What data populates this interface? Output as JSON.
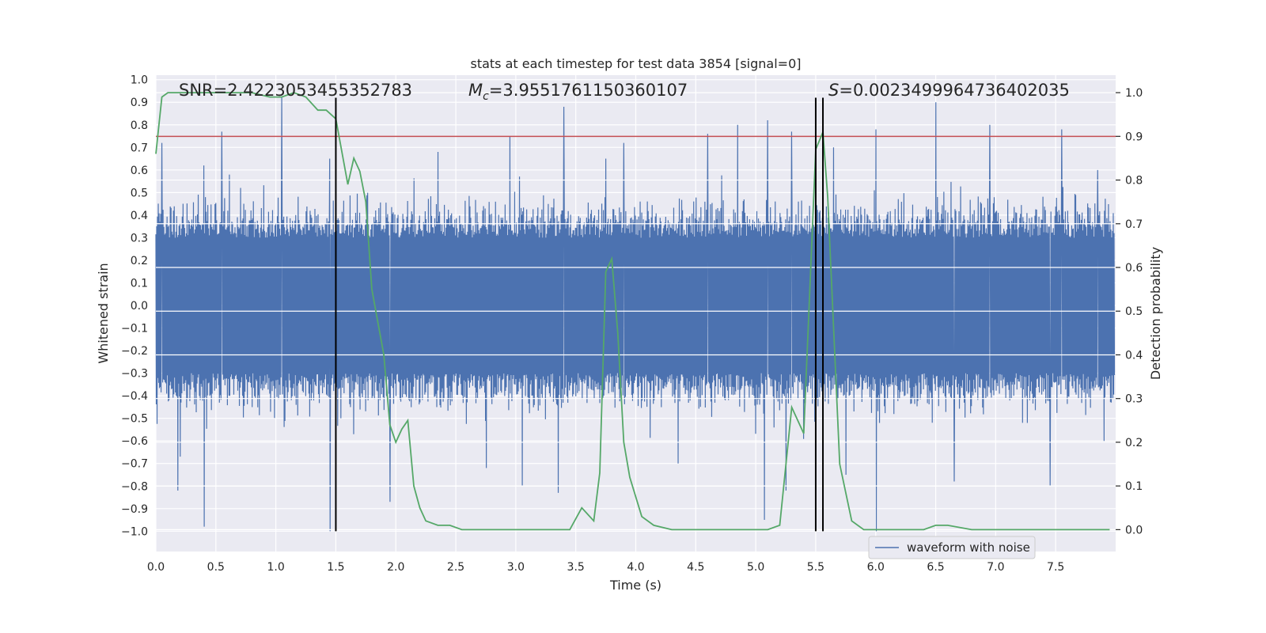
{
  "chart_data": {
    "type": "line",
    "title": "stats at each timestep for test data 3854 [signal=0]",
    "xlabel": "Time (s)",
    "ylabel": "Whitened strain",
    "y2label": "Detection probability",
    "xlim": [
      0.0,
      8.0
    ],
    "ylim": [
      -1.09,
      1.02
    ],
    "y2lim": [
      -0.05,
      1.04
    ],
    "xticks": [
      "0.0",
      "0.5",
      "1.0",
      "1.5",
      "2.0",
      "2.5",
      "3.0",
      "3.5",
      "4.0",
      "4.5",
      "5.0",
      "5.5",
      "6.0",
      "6.5",
      "7.0",
      "7.5"
    ],
    "yticks": [
      "1.0",
      "0.9",
      "0.8",
      "0.7",
      "0.6",
      "0.5",
      "0.4",
      "0.3",
      "0.2",
      "0.1",
      "0.0",
      "−0.1",
      "−0.2",
      "−0.3",
      "−0.4",
      "−0.5",
      "−0.6",
      "−0.7",
      "−0.8",
      "−0.9",
      "−1.0"
    ],
    "y2ticks": [
      "1.0",
      "0.9",
      "0.8",
      "0.7",
      "0.6",
      "0.5",
      "0.4",
      "0.3",
      "0.2",
      "0.1",
      "0.0"
    ],
    "grid": true,
    "legend": {
      "position": "lower-right",
      "entries": [
        {
          "label": "waveform with noise",
          "color": "#4c72b0"
        }
      ]
    },
    "annotations": {
      "snr": "SNR=2.4223053455352783",
      "mc_symbol": "M",
      "mc_sub": "c",
      "mc_value": "=3.9551761150360107",
      "s_symbol": "S",
      "s_value": "=0.0023499964736402035"
    },
    "threshold": {
      "value": 0.9,
      "axis": "right",
      "color": "#c44e52"
    },
    "vlines": [
      1.5,
      5.5,
      5.56
    ],
    "waveform": {
      "name": "waveform with noise",
      "color": "#4c72b0",
      "x_range": [
        0.0,
        7.99
      ],
      "core_band": [
        -0.35,
        0.35
      ],
      "peaks_max": [
        [
          0.05,
          0.72
        ],
        [
          0.4,
          0.62
        ],
        [
          0.55,
          0.77
        ],
        [
          1.05,
          0.92
        ],
        [
          1.45,
          0.65
        ],
        [
          2.35,
          0.68
        ],
        [
          2.95,
          0.75
        ],
        [
          3.4,
          0.88
        ],
        [
          3.75,
          0.65
        ],
        [
          3.9,
          0.72
        ],
        [
          4.6,
          0.76
        ],
        [
          4.85,
          0.8
        ],
        [
          5.1,
          0.82
        ],
        [
          5.3,
          0.77
        ],
        [
          5.65,
          0.7
        ],
        [
          6.0,
          0.78
        ],
        [
          6.5,
          0.9
        ],
        [
          6.95,
          0.8
        ],
        [
          7.55,
          0.78
        ],
        [
          7.85,
          0.6
        ]
      ],
      "peaks_min": [
        [
          0.2,
          -0.67
        ],
        [
          0.4,
          -0.98
        ],
        [
          0.18,
          -0.82
        ],
        [
          1.45,
          -1.0
        ],
        [
          1.95,
          -0.87
        ],
        [
          2.75,
          -0.72
        ],
        [
          3.05,
          -0.8
        ],
        [
          3.35,
          -0.83
        ],
        [
          4.35,
          -0.7
        ],
        [
          5.07,
          -0.95
        ],
        [
          5.25,
          -0.82
        ],
        [
          5.75,
          -0.75
        ],
        [
          6.0,
          -1.0
        ],
        [
          6.65,
          -0.78
        ],
        [
          7.45,
          -0.8
        ],
        [
          7.9,
          -0.6
        ]
      ]
    },
    "detection_probability": {
      "name": "detection probability",
      "color": "#55a868",
      "x": [
        0.0,
        0.05,
        0.1,
        0.2,
        0.4,
        0.6,
        0.8,
        0.95,
        1.05,
        1.15,
        1.25,
        1.35,
        1.42,
        1.5,
        1.6,
        1.65,
        1.7,
        1.75,
        1.8,
        1.9,
        1.95,
        2.0,
        2.05,
        2.1,
        2.15,
        2.2,
        2.25,
        2.35,
        2.45,
        2.55,
        2.7,
        2.85,
        2.95,
        3.05,
        3.15,
        3.3,
        3.45,
        3.55,
        3.65,
        3.7,
        3.75,
        3.8,
        3.85,
        3.9,
        3.95,
        4.05,
        4.15,
        4.3,
        4.5,
        4.7,
        4.9,
        5.1,
        5.2,
        5.3,
        5.4,
        5.5,
        5.56,
        5.6,
        5.7,
        5.8,
        5.9,
        6.0,
        6.2,
        6.4,
        6.5,
        6.6,
        6.8,
        7.0,
        7.2,
        7.5,
        7.8,
        7.95
      ],
      "y": [
        0.86,
        0.99,
        1.0,
        1.0,
        1.0,
        1.0,
        1.0,
        0.99,
        0.99,
        1.0,
        0.99,
        0.96,
        0.96,
        0.94,
        0.79,
        0.85,
        0.82,
        0.75,
        0.55,
        0.4,
        0.24,
        0.2,
        0.23,
        0.25,
        0.1,
        0.05,
        0.02,
        0.01,
        0.01,
        0.0,
        0.0,
        0.0,
        0.0,
        0.0,
        0.0,
        0.0,
        0.0,
        0.05,
        0.02,
        0.13,
        0.59,
        0.62,
        0.45,
        0.2,
        0.12,
        0.03,
        0.01,
        0.0,
        0.0,
        0.0,
        0.0,
        0.0,
        0.01,
        0.28,
        0.22,
        0.87,
        0.91,
        0.76,
        0.15,
        0.02,
        0.0,
        0.0,
        0.0,
        0.0,
        0.01,
        0.01,
        0.0,
        0.0,
        0.0,
        0.0,
        0.0,
        0.0
      ]
    }
  }
}
